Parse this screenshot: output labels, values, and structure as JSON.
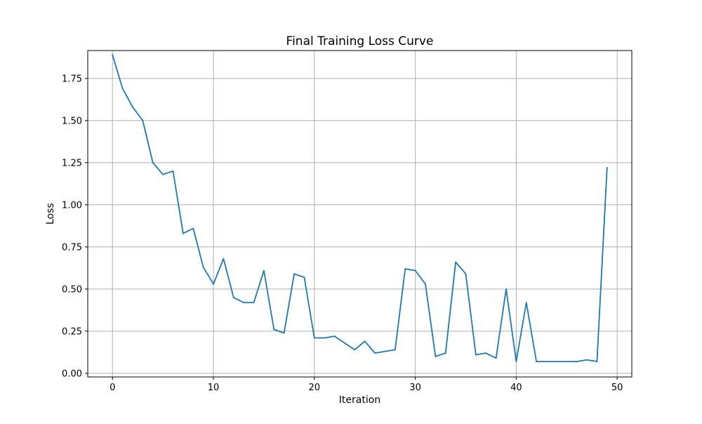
{
  "chart_data": {
    "type": "line",
    "title": "Final Training Loss Curve",
    "xlabel": "Iteration",
    "ylabel": "Loss",
    "xlim": [
      -2.45,
      51.45
    ],
    "ylim": [
      -0.0216,
      1.9156
    ],
    "xticks": [
      0,
      10,
      20,
      30,
      40,
      50
    ],
    "xtick_labels": [
      "0",
      "10",
      "20",
      "30",
      "40",
      "50"
    ],
    "yticks": [
      0.0,
      0.25,
      0.5,
      0.75,
      1.0,
      1.25,
      1.5,
      1.75
    ],
    "ytick_labels": [
      "0.00",
      "0.25",
      "0.50",
      "0.75",
      "1.00",
      "1.25",
      "1.50",
      "1.75"
    ],
    "grid": true,
    "legend": "none",
    "series": [
      {
        "color": "#1f77b4",
        "x": [
          0,
          1,
          2,
          3,
          4,
          5,
          6,
          7,
          8,
          9,
          10,
          11,
          12,
          13,
          14,
          15,
          16,
          17,
          18,
          19,
          20,
          21,
          22,
          23,
          24,
          25,
          26,
          27,
          28,
          29,
          30,
          31,
          32,
          33,
          34,
          35,
          36,
          37,
          38,
          39,
          40,
          41,
          42,
          43,
          44,
          45,
          46,
          47,
          48,
          49
        ],
        "y": [
          1.89,
          1.69,
          1.58,
          1.5,
          1.25,
          1.18,
          1.2,
          0.83,
          0.86,
          0.63,
          0.53,
          0.68,
          0.45,
          0.42,
          0.42,
          0.61,
          0.26,
          0.24,
          0.59,
          0.57,
          0.21,
          0.21,
          0.22,
          0.18,
          0.14,
          0.19,
          0.12,
          0.13,
          0.14,
          0.62,
          0.61,
          0.53,
          0.1,
          0.12,
          0.66,
          0.59,
          0.11,
          0.12,
          0.09,
          0.5,
          0.07,
          0.42,
          0.07,
          0.07,
          0.07,
          0.07,
          0.07,
          0.08,
          0.07,
          1.22
        ]
      }
    ]
  }
}
